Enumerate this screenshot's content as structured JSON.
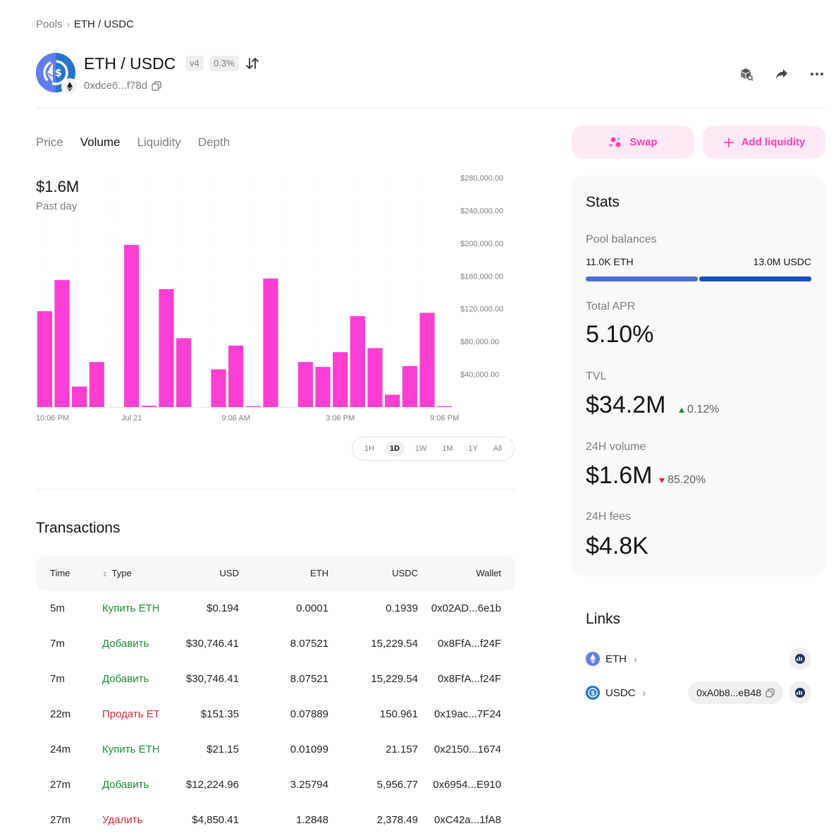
{
  "breadcrumb": {
    "root": "Pools",
    "separator": "›",
    "current": "ETH / USDC"
  },
  "pool": {
    "title": "ETH / USDC",
    "version": "v4",
    "fee": "0.3%",
    "address": "0xdce6...f78d"
  },
  "header_icons": [
    "explorer-cube-icon",
    "share-icon",
    "more-icon"
  ],
  "tabs": [
    {
      "label": "Price",
      "active": false
    },
    {
      "label": "Volume",
      "active": true
    },
    {
      "label": "Liquidity",
      "active": false
    },
    {
      "label": "Depth",
      "active": false
    }
  ],
  "volume": {
    "value": "$1.6M",
    "period": "Past day"
  },
  "chart_data": {
    "type": "bar",
    "title": "",
    "xlabel": "",
    "ylabel": "",
    "x_tick_labels": [
      "10:06 PM",
      "Jul 21",
      "9:06 AM",
      "3:06 PM",
      "9:06 PM"
    ],
    "x_tick_index": [
      0,
      5,
      11,
      17,
      23
    ],
    "y_tick_labels": [
      "$40,000.00",
      "$80,000.00",
      "$120,000.00",
      "$160,000.00",
      "$200,000.00",
      "$240,000.00",
      "$280,000.00"
    ],
    "y_tick_values": [
      40000,
      80000,
      120000,
      160000,
      200000,
      240000,
      280000
    ],
    "ylim": [
      0,
      280000
    ],
    "grid": true,
    "color": "#fc3fd3",
    "values": [
      117000,
      155000,
      25000,
      55000,
      0,
      198000,
      1500,
      144000,
      84000,
      0,
      46000,
      75000,
      1000,
      157000,
      0,
      55000,
      49000,
      67000,
      111000,
      72000,
      15000,
      50000,
      115000,
      1000
    ]
  },
  "time_ranges": [
    {
      "label": "1H",
      "selected": false
    },
    {
      "label": "1D",
      "selected": true
    },
    {
      "label": "1W",
      "selected": false
    },
    {
      "label": "1M",
      "selected": false
    },
    {
      "label": "1Y",
      "selected": false
    },
    {
      "label": "All",
      "selected": false
    }
  ],
  "transactions": {
    "title": "Transactions",
    "columns": {
      "time": "Time",
      "type": "Type",
      "usd": "USD",
      "eth": "ETH",
      "usdc": "USDC",
      "wallet": "Wallet"
    },
    "rows": [
      {
        "time": "5m",
        "type": "Купить ETH",
        "kind": "buy",
        "usd": "$0.194",
        "eth": "0.0001",
        "usdc": "0.1939",
        "wallet": "0x02AD...6e1b"
      },
      {
        "time": "7m",
        "type": "Добавить",
        "kind": "add",
        "usd": "$30,746.41",
        "eth": "8.07521",
        "usdc": "15,229.54",
        "wallet": "0x8FfA...f24F"
      },
      {
        "time": "7m",
        "type": "Добавить",
        "kind": "add",
        "usd": "$30,746.41",
        "eth": "8.07521",
        "usdc": "15,229.54",
        "wallet": "0x8FfA...f24F"
      },
      {
        "time": "22m",
        "type": "Продать ETH",
        "kind": "sell",
        "usd": "$151.35",
        "eth": "0.07889",
        "usdc": "150.961",
        "wallet": "0x19ac...7F24"
      },
      {
        "time": "24m",
        "type": "Купить ETH",
        "kind": "buy",
        "usd": "$21.15",
        "eth": "0.01099",
        "usdc": "21.157",
        "wallet": "0x2150...1674"
      },
      {
        "time": "27m",
        "type": "Добавить",
        "kind": "add",
        "usd": "$12,224.96",
        "eth": "3.25794",
        "usdc": "5,956.77",
        "wallet": "0x6954...E910"
      },
      {
        "time": "27m",
        "type": "Удалить",
        "kind": "remove",
        "usd": "$4,850.41",
        "eth": "1.2848",
        "usdc": "2,378.49",
        "wallet": "0xC42a...1fA8"
      }
    ]
  },
  "actions": {
    "swap_label": "Swap",
    "add_liquidity_label": "Add liquidity"
  },
  "stats": {
    "title": "Stats",
    "pool_balances_label": "Pool balances",
    "eth_balance": "11.0K ETH",
    "usdc_balance": "13.0M USDC",
    "eth_share": 0.5,
    "eth_color": "#4c6fd6",
    "usdc_color": "#1652c0",
    "apr_label": "Total APR",
    "apr_value": "5.10%",
    "tvl_label": "TVL",
    "tvl_value": "$34.2M",
    "tvl_change": "0.12%",
    "volume_label": "24H volume",
    "volume_value": "$1.6M",
    "volume_change": "85.20%",
    "fees_label": "24H fees",
    "fees_value": "$4.8K"
  },
  "links": {
    "title": "Links",
    "eth_label": "ETH",
    "usdc_label": "USDC",
    "usdc_address": "0xA0b8...eB48",
    "chevron": "›"
  }
}
